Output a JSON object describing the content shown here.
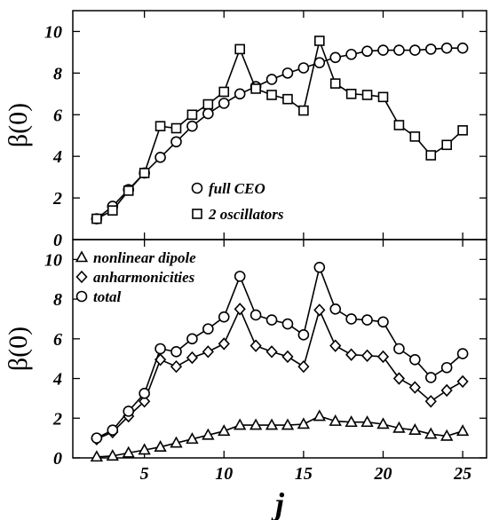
{
  "chart_data": [
    {
      "type": "line",
      "panel": "top",
      "ylabel": "β(0)",
      "xlabel": "",
      "xlim": [
        0.5,
        26.5
      ],
      "ylim": [
        0,
        11
      ],
      "yticks": [
        0,
        2,
        4,
        6,
        8,
        10
      ],
      "xticks": [
        5,
        10,
        15,
        20,
        25
      ],
      "legend_position": "lower-center",
      "series": [
        {
          "name": "full CEO",
          "marker": "circle",
          "x": [
            2,
            3,
            4,
            5,
            6,
            7,
            8,
            9,
            10,
            11,
            12,
            13,
            14,
            15,
            16,
            17,
            18,
            19,
            20,
            21,
            22,
            23,
            24,
            25
          ],
          "y": [
            1.0,
            1.6,
            2.4,
            3.2,
            3.95,
            4.7,
            5.45,
            6.05,
            6.55,
            7.0,
            7.35,
            7.7,
            8.0,
            8.25,
            8.5,
            8.75,
            8.9,
            9.05,
            9.1,
            9.1,
            9.1,
            9.15,
            9.2,
            9.2
          ]
        },
        {
          "name": "2 oscillators",
          "marker": "square",
          "x": [
            2,
            3,
            4,
            5,
            6,
            7,
            8,
            9,
            10,
            11,
            12,
            13,
            14,
            15,
            16,
            17,
            18,
            19,
            20,
            21,
            22,
            23,
            24,
            25
          ],
          "y": [
            1.0,
            1.4,
            2.35,
            3.2,
            5.45,
            5.35,
            6.0,
            6.5,
            7.1,
            9.15,
            7.25,
            6.95,
            6.75,
            6.2,
            9.55,
            7.5,
            7.0,
            6.95,
            6.85,
            5.5,
            4.95,
            4.05,
            4.55,
            5.25
          ]
        }
      ]
    },
    {
      "type": "line",
      "panel": "bottom",
      "ylabel": "β(0)",
      "xlabel": "j",
      "xlim": [
        0.5,
        26.5
      ],
      "ylim": [
        0,
        11
      ],
      "yticks": [
        0,
        2,
        4,
        6,
        8,
        10
      ],
      "xticks": [
        5,
        10,
        15,
        20,
        25
      ],
      "legend_position": "top-left",
      "series": [
        {
          "name": "nonlinear dipole",
          "marker": "triangle",
          "x": [
            2,
            3,
            4,
            5,
            6,
            7,
            8,
            9,
            10,
            11,
            12,
            13,
            14,
            15,
            16,
            17,
            18,
            19,
            20,
            21,
            22,
            23,
            24,
            25
          ],
          "y": [
            0.05,
            0.1,
            0.25,
            0.4,
            0.55,
            0.75,
            0.95,
            1.15,
            1.35,
            1.65,
            1.65,
            1.65,
            1.65,
            1.7,
            2.1,
            1.85,
            1.8,
            1.8,
            1.7,
            1.5,
            1.4,
            1.2,
            1.1,
            1.35
          ]
        },
        {
          "name": "anharmonicities",
          "marker": "diamond",
          "x": [
            2,
            3,
            4,
            5,
            6,
            7,
            8,
            9,
            10,
            11,
            12,
            13,
            14,
            15,
            16,
            17,
            18,
            19,
            20,
            21,
            22,
            23,
            24,
            25
          ],
          "y": [
            0.95,
            1.3,
            2.1,
            2.85,
            4.95,
            4.6,
            5.05,
            5.35,
            5.75,
            7.5,
            5.65,
            5.35,
            5.1,
            4.6,
            7.45,
            5.65,
            5.2,
            5.15,
            5.1,
            4.0,
            3.55,
            2.85,
            3.4,
            3.85
          ]
        },
        {
          "name": "total",
          "marker": "circle",
          "x": [
            2,
            3,
            4,
            5,
            6,
            7,
            8,
            9,
            10,
            11,
            12,
            13,
            14,
            15,
            16,
            17,
            18,
            19,
            20,
            21,
            22,
            23,
            24,
            25
          ],
          "y": [
            1.0,
            1.4,
            2.35,
            3.25,
            5.5,
            5.35,
            6.0,
            6.5,
            7.1,
            9.15,
            7.2,
            6.95,
            6.75,
            6.2,
            9.6,
            7.5,
            7.0,
            6.95,
            6.85,
            5.5,
            4.95,
            4.05,
            4.55,
            5.25
          ]
        }
      ]
    }
  ]
}
